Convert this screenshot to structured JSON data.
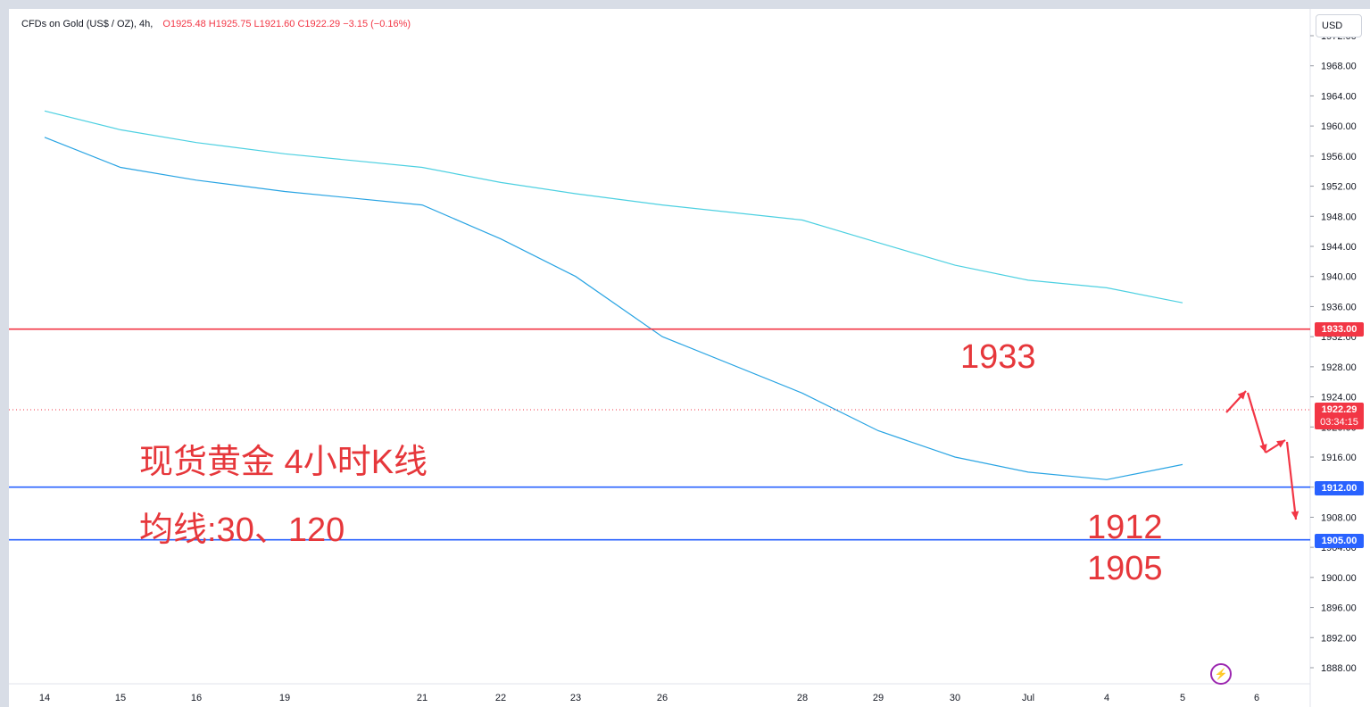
{
  "legend": {
    "symbol": "CFDs on Gold (US$ / OZ), 4h,",
    "ohlc": "O1925.48 H1925.75 L1921.60 C1922.29 −3.15 (−0.16%)"
  },
  "currency_label": "USD",
  "annotations": {
    "title": "现货黄金 4小时K线",
    "ma_note": "均线:30、120",
    "level_1933": "1933",
    "level_1912": "1912",
    "level_1905": "1905"
  },
  "price_tags": {
    "line_1933": "1933.00",
    "line_1912": "1912.00",
    "line_1905": "1905.00",
    "last_price": "1922.29",
    "countdown": "03:34:15"
  },
  "flash_icon": "lightning-icon",
  "colors": {
    "up": "#26a69a",
    "down": "#f23645",
    "resistance": "#f23645",
    "support": "#2962ff",
    "ma30": "#29a4e3",
    "ma120": "#4dd0e1",
    "annotation": "#e6373b"
  },
  "chart_data": {
    "type": "line",
    "price_axis": {
      "ticks": [
        "1888.00",
        "1892.00",
        "1896.00",
        "1900.00",
        "1904.00",
        "1908.00",
        "1912.00",
        "1916.00",
        "1920.00",
        "1924.00",
        "1928.00",
        "1932.00",
        "1936.00",
        "1940.00",
        "1944.00",
        "1948.00",
        "1952.00",
        "1956.00",
        "1960.00",
        "1964.00",
        "1968.00",
        "1972.00"
      ],
      "range": [
        1886.5,
        1973
      ]
    },
    "time_axis": {
      "labels": [
        "14",
        "15",
        "16",
        "19",
        "21",
        "22",
        "23",
        "26",
        "28",
        "29",
        "30",
        "Jul",
        "4",
        "5",
        "6"
      ]
    },
    "horizontal_levels": [
      {
        "value": 1933,
        "color": "#f23645"
      },
      {
        "value": 1912,
        "color": "#2962ff"
      },
      {
        "value": 1905,
        "color": "#2962ff"
      }
    ],
    "series": [
      {
        "name": "MA30",
        "x": [
          "14",
          "15",
          "16",
          "19",
          "21",
          "22",
          "23",
          "26",
          "28",
          "29",
          "30",
          "Jul",
          "4",
          "5"
        ],
        "values": [
          1958.5,
          1954.5,
          1952.8,
          1951.3,
          1949.5,
          1945.0,
          1940.0,
          1932.0,
          1924.5,
          1919.5,
          1916.0,
          1914.0,
          1913.0,
          1915.0
        ]
      },
      {
        "name": "MA120",
        "x": [
          "14",
          "15",
          "16",
          "19",
          "21",
          "22",
          "23",
          "26",
          "28",
          "29",
          "30",
          "Jul",
          "4",
          "5"
        ],
        "values": [
          1962.0,
          1959.5,
          1957.8,
          1956.3,
          1954.5,
          1952.5,
          1951.0,
          1949.5,
          1947.5,
          1944.5,
          1941.5,
          1939.5,
          1938.5,
          1936.5
        ]
      }
    ]
  }
}
